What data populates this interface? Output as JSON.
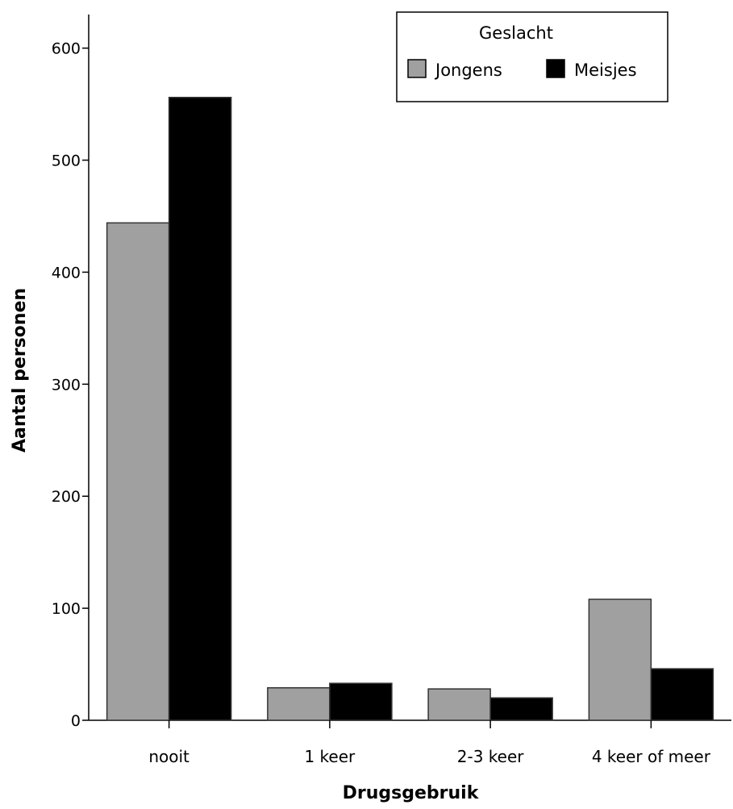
{
  "chart_data": {
    "type": "bar",
    "categories": [
      "nooit",
      "1 keer",
      "2-3 keer",
      "4 keer of meer"
    ],
    "series": [
      {
        "name": "Jongens",
        "color": "#a0a0a0",
        "values": [
          444,
          29,
          28,
          108
        ]
      },
      {
        "name": "Meisjes",
        "color": "#000000",
        "values": [
          556,
          33,
          20,
          46
        ]
      }
    ],
    "title": "",
    "xlabel": "Drugsgebruik",
    "ylabel": "Aantal personen",
    "ylim": [
      0,
      630
    ],
    "yticks": [
      0,
      100,
      200,
      300,
      400,
      500,
      600
    ],
    "grid": false,
    "legend": {
      "title": "Geslacht",
      "placement": "top-right",
      "entries": [
        "Jongens",
        "Meisjes"
      ]
    }
  }
}
